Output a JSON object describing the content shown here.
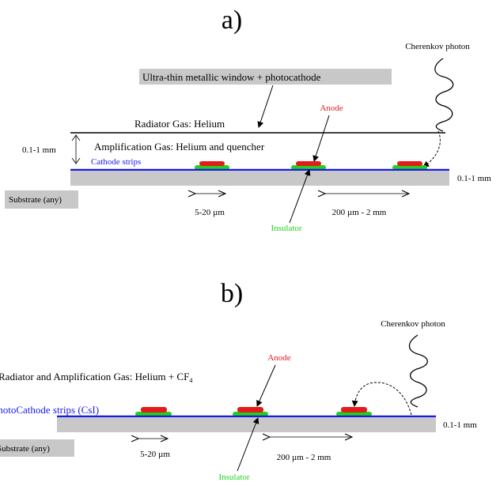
{
  "colors": {
    "anode": "#e41b1b",
    "insulator": "#22d11c",
    "cathode": "#1a1ae6",
    "substrate": "#c8c8c8",
    "text": "#000000"
  },
  "panel_a": {
    "label": "a)",
    "cherenkov": "Cherenkov photon",
    "window_label": "Ultra-thin metallic window  + photocathode",
    "anode": "Anode",
    "radiator": "Radiator Gas: Helium",
    "gap": "0.1-1 mm",
    "amplification": "Amplification Gas: Helium and quencher",
    "cathode": "Cathode strips",
    "substrate_right": "0.1-1 mm",
    "substrate": "Substrate (any)",
    "strip_width": "5-20 µm",
    "pitch": "200 µm - 2 mm",
    "insulator": "Insulator"
  },
  "panel_b": {
    "label": "b)",
    "cherenkov": "Cherenkov photon",
    "anode": "Anode",
    "gas_prefix": "Radiator and Amplification Gas: Helium + CF",
    "gas_subscript": "4",
    "photocathode": "PhotoCathode strips (CsI)",
    "substrate_right": "0.1-1 mm",
    "substrate": "Substrate (any)",
    "strip_width": "5-20 µm",
    "pitch": "200 µm - 2 mm",
    "insulator": "Insulator"
  }
}
